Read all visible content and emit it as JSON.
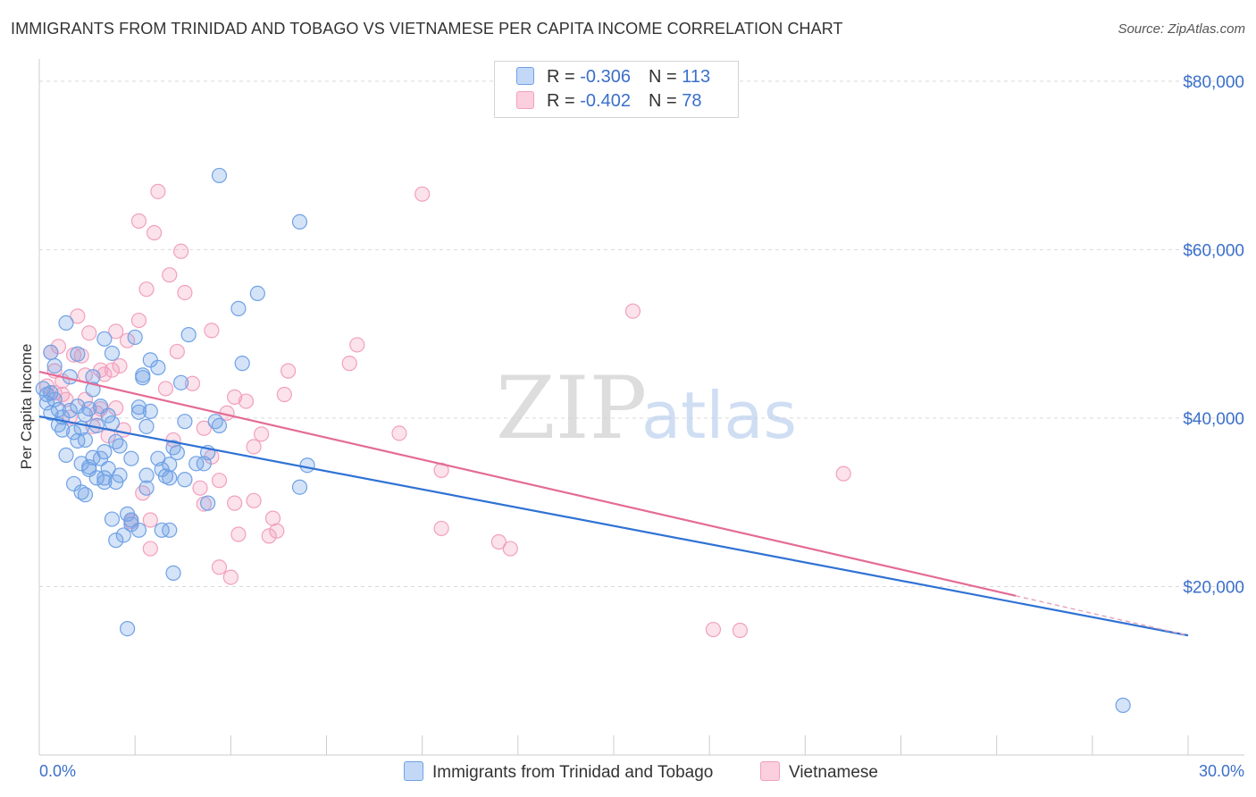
{
  "title": "IMMIGRANTS FROM TRINIDAD AND TOBAGO VS VIETNAMESE PER CAPITA INCOME CORRELATION CHART",
  "source": "Source: ZipAtlas.com",
  "watermark": {
    "zip": "ZIP",
    "atlas": "atlas"
  },
  "legend": {
    "series1": {
      "r_label": "R = ",
      "r_value": "-0.306",
      "n_label": "N = ",
      "n_value": "113"
    },
    "series2": {
      "r_label": "R = ",
      "r_value": "-0.402",
      "n_label": "N = ",
      "n_value": "78"
    }
  },
  "chart_data": {
    "type": "scatter",
    "title": "IMMIGRANTS FROM TRINIDAD AND TOBAGO VS VIETNAMESE PER CAPITA INCOME CORRELATION CHART",
    "xlabel": "",
    "ylabel": "Per Capita Income",
    "xlim": [
      0,
      30
    ],
    "ylim": [
      0,
      82000
    ],
    "x_tick_labels": [
      "0.0%",
      "30.0%"
    ],
    "y_ticks": [
      20000,
      40000,
      60000,
      80000
    ],
    "y_tick_labels": [
      "$20,000",
      "$40,000",
      "$60,000",
      "$80,000"
    ],
    "grid": true,
    "legend_position": "top-center",
    "series": [
      {
        "name": "Immigrants from Trinidad and Tobago",
        "color": "#6fa1e6",
        "line_color": "#2f72d4",
        "trend": {
          "x": [
            0,
            30
          ],
          "y": [
            40200,
            14200
          ]
        },
        "points": [
          [
            0.1,
            43500
          ],
          [
            0.2,
            42800
          ],
          [
            0.2,
            41800
          ],
          [
            0.3,
            47800
          ],
          [
            0.3,
            43000
          ],
          [
            0.3,
            40600
          ],
          [
            0.4,
            42200
          ],
          [
            0.4,
            46200
          ],
          [
            0.5,
            41000
          ],
          [
            0.5,
            39200
          ],
          [
            0.6,
            38600
          ],
          [
            0.6,
            40100
          ],
          [
            0.7,
            35600
          ],
          [
            0.7,
            51300
          ],
          [
            0.8,
            44900
          ],
          [
            0.8,
            40900
          ],
          [
            0.9,
            38300
          ],
          [
            0.9,
            32200
          ],
          [
            1.0,
            41400
          ],
          [
            1.0,
            37300
          ],
          [
            1.0,
            47600
          ],
          [
            1.1,
            38800
          ],
          [
            1.1,
            34600
          ],
          [
            1.1,
            31200
          ],
          [
            1.2,
            40400
          ],
          [
            1.2,
            37400
          ],
          [
            1.2,
            30900
          ],
          [
            1.3,
            41100
          ],
          [
            1.3,
            33900
          ],
          [
            1.3,
            34200
          ],
          [
            1.4,
            44900
          ],
          [
            1.4,
            35300
          ],
          [
            1.4,
            43400
          ],
          [
            1.5,
            39100
          ],
          [
            1.5,
            32900
          ],
          [
            1.6,
            41400
          ],
          [
            1.6,
            35200
          ],
          [
            1.7,
            36000
          ],
          [
            1.7,
            32900
          ],
          [
            1.7,
            32400
          ],
          [
            1.7,
            49400
          ],
          [
            1.8,
            40300
          ],
          [
            1.8,
            34000
          ],
          [
            1.9,
            28000
          ],
          [
            1.9,
            39400
          ],
          [
            1.9,
            47700
          ],
          [
            2.0,
            32400
          ],
          [
            2.0,
            25500
          ],
          [
            2.0,
            37200
          ],
          [
            2.1,
            36700
          ],
          [
            2.1,
            33200
          ],
          [
            2.2,
            26100
          ],
          [
            2.3,
            28600
          ],
          [
            2.3,
            15000
          ],
          [
            2.4,
            27400
          ],
          [
            2.4,
            27900
          ],
          [
            2.4,
            35200
          ],
          [
            2.5,
            49600
          ],
          [
            2.6,
            26700
          ],
          [
            2.6,
            41300
          ],
          [
            2.6,
            40700
          ],
          [
            2.7,
            45100
          ],
          [
            2.7,
            44800
          ],
          [
            2.8,
            39000
          ],
          [
            2.8,
            33200
          ],
          [
            2.8,
            31700
          ],
          [
            2.9,
            40800
          ],
          [
            2.9,
            46900
          ],
          [
            3.1,
            46000
          ],
          [
            3.1,
            35200
          ],
          [
            3.2,
            33900
          ],
          [
            3.2,
            26700
          ],
          [
            3.3,
            33100
          ],
          [
            3.4,
            32900
          ],
          [
            3.4,
            26700
          ],
          [
            3.4,
            34500
          ],
          [
            3.5,
            21600
          ],
          [
            3.5,
            36500
          ],
          [
            3.6,
            35900
          ],
          [
            3.7,
            44200
          ],
          [
            3.8,
            39600
          ],
          [
            3.8,
            32700
          ],
          [
            3.9,
            49900
          ],
          [
            4.1,
            34600
          ],
          [
            4.3,
            34600
          ],
          [
            4.4,
            35900
          ],
          [
            4.4,
            29900
          ],
          [
            4.6,
            39600
          ],
          [
            4.7,
            39100
          ],
          [
            4.7,
            68800
          ],
          [
            5.2,
            53000
          ],
          [
            5.3,
            46500
          ],
          [
            5.7,
            54800
          ],
          [
            6.8,
            31800
          ],
          [
            6.8,
            63300
          ],
          [
            7.0,
            34400
          ],
          [
            28.3,
            5900
          ]
        ]
      },
      {
        "name": "Vietnamese",
        "color": "#f2a0be",
        "line_color": "#e46b95",
        "trend": {
          "x": [
            0,
            25.5
          ],
          "y": [
            45500,
            18900
          ]
        },
        "points": [
          [
            0.2,
            43800
          ],
          [
            0.3,
            47800
          ],
          [
            0.4,
            45600
          ],
          [
            0.4,
            43000
          ],
          [
            0.5,
            48500
          ],
          [
            0.6,
            42800
          ],
          [
            0.6,
            44400
          ],
          [
            0.7,
            42200
          ],
          [
            0.8,
            40100
          ],
          [
            0.9,
            47500
          ],
          [
            1.0,
            52100
          ],
          [
            1.1,
            47400
          ],
          [
            1.2,
            45100
          ],
          [
            1.2,
            42200
          ],
          [
            1.3,
            50100
          ],
          [
            1.4,
            39000
          ],
          [
            1.5,
            40600
          ],
          [
            1.6,
            45700
          ],
          [
            1.6,
            41100
          ],
          [
            1.7,
            45200
          ],
          [
            1.8,
            37900
          ],
          [
            1.9,
            45700
          ],
          [
            2.0,
            41200
          ],
          [
            2.0,
            50300
          ],
          [
            2.1,
            46200
          ],
          [
            2.2,
            38600
          ],
          [
            2.3,
            49200
          ],
          [
            2.4,
            27700
          ],
          [
            2.6,
            51600
          ],
          [
            2.6,
            63400
          ],
          [
            2.7,
            31100
          ],
          [
            2.8,
            55300
          ],
          [
            2.9,
            24500
          ],
          [
            2.9,
            27900
          ],
          [
            3.0,
            62000
          ],
          [
            3.1,
            66900
          ],
          [
            3.3,
            43500
          ],
          [
            3.4,
            57000
          ],
          [
            3.5,
            37400
          ],
          [
            3.6,
            47900
          ],
          [
            3.7,
            59800
          ],
          [
            3.8,
            54900
          ],
          [
            4.0,
            44100
          ],
          [
            4.2,
            31700
          ],
          [
            4.3,
            29800
          ],
          [
            4.3,
            38800
          ],
          [
            4.5,
            35400
          ],
          [
            4.5,
            50400
          ],
          [
            4.7,
            22300
          ],
          [
            4.7,
            32600
          ],
          [
            4.9,
            40600
          ],
          [
            5.0,
            21100
          ],
          [
            5.1,
            29900
          ],
          [
            5.1,
            42500
          ],
          [
            5.2,
            26200
          ],
          [
            5.4,
            42000
          ],
          [
            5.6,
            30200
          ],
          [
            5.6,
            36600
          ],
          [
            5.8,
            38100
          ],
          [
            6.0,
            26000
          ],
          [
            6.1,
            28100
          ],
          [
            6.2,
            26600
          ],
          [
            6.4,
            42800
          ],
          [
            6.5,
            45600
          ],
          [
            8.1,
            46500
          ],
          [
            8.3,
            48700
          ],
          [
            9.4,
            38200
          ],
          [
            10.0,
            66600
          ],
          [
            10.5,
            33800
          ],
          [
            10.5,
            26900
          ],
          [
            12.0,
            25300
          ],
          [
            12.3,
            24500
          ],
          [
            15.5,
            52700
          ],
          [
            17.6,
            14900
          ],
          [
            18.3,
            14800
          ],
          [
            21.0,
            33400
          ]
        ]
      }
    ]
  }
}
